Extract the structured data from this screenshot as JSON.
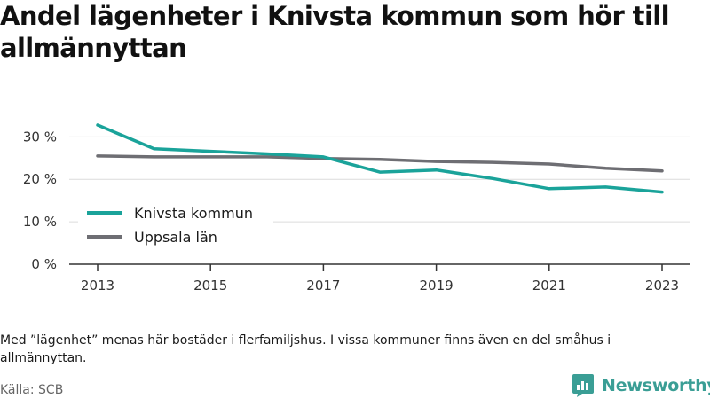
{
  "title": "Andel lägenheter i Knivsta kommun som hör till allmännyttan",
  "note": "Med ”lägenhet” menas här bostäder i flerfamiljshus. I vissa kommuner finns även en del småhus i allmännyttan.",
  "source": "Källa: SCB",
  "brand": {
    "name": "Newsworthy",
    "color": "#3a9e95",
    "icon": "newsworthy-logo-icon"
  },
  "chart_data": {
    "type": "line",
    "x": [
      2013,
      2014,
      2015,
      2016,
      2017,
      2018,
      2019,
      2020,
      2021,
      2022,
      2023
    ],
    "series": [
      {
        "name": "Knivsta kommun",
        "color": "#1aa39a",
        "values": [
          32.8,
          27.2,
          26.6,
          26.0,
          25.3,
          21.7,
          22.2,
          20.2,
          17.8,
          18.2,
          17.0
        ]
      },
      {
        "name": "Uppsala län",
        "color": "#6e6e73",
        "values": [
          25.5,
          25.3,
          25.3,
          25.3,
          24.9,
          24.7,
          24.2,
          24.0,
          23.6,
          22.6,
          22.0
        ]
      }
    ],
    "ylim": [
      0,
      33
    ],
    "y_ticks": [
      0,
      10,
      20,
      30
    ],
    "y_tick_labels": [
      "0 %",
      "10 %",
      "20 %",
      "30 %"
    ],
    "x_ticks": [
      2013,
      2015,
      2017,
      2019,
      2021,
      2023
    ],
    "x_tick_labels": [
      "2013",
      "2015",
      "2017",
      "2019",
      "2021",
      "2023"
    ],
    "grid": "horizontal",
    "legend": "left",
    "xlabel": "",
    "ylabel": ""
  }
}
